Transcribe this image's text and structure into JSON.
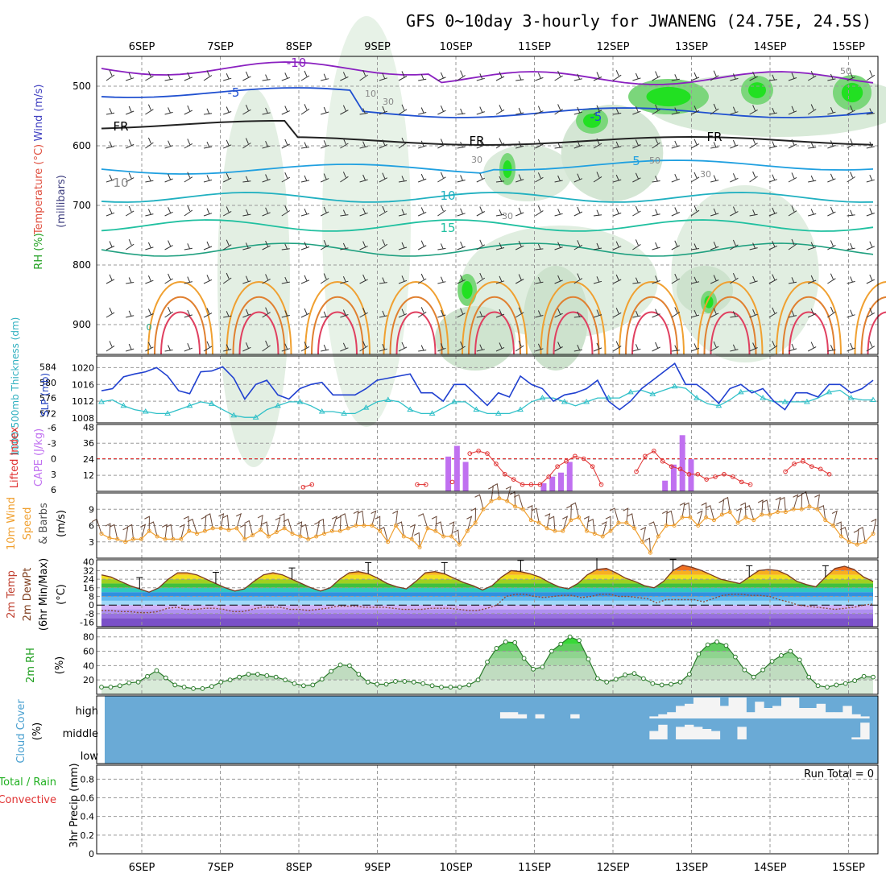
{
  "title": "GFS 0~10day 3-hourly for JWANENG (24.75E, 24.5S)",
  "dates": [
    "6SEP",
    "7SEP",
    "8SEP",
    "9SEP",
    "10SEP",
    "11SEP",
    "12SEP",
    "13SEP",
    "14SEP",
    "15SEP"
  ],
  "labels": {
    "upper_wind": "Wind (m/s)",
    "upper_temp": "Temperature (°C)",
    "upper_rh": "RH (%)",
    "upper_unit": "(millibars)",
    "thick": "1000-500mb Thickness (dm)",
    "slp": "SLP (mb)",
    "li": "Lifted Index",
    "cape": "CAPE (J/kg)",
    "wind10": "10m Wind",
    "speed": "Speed",
    "barbs": "& Barbs",
    "ms": "(m/s)",
    "temp2m": "2m Temp",
    "dew2m": "2m DewPt",
    "minmax": "(6hr Min/Max)",
    "degc": "(°C)",
    "rh2m": "2m RH",
    "pct": "(%)",
    "cloud": "Cloud Cover",
    "precip_total": "Total / Rain",
    "precip_conv": "Convective",
    "precip": "3hr Precip (mm)",
    "run_total": "Run Total = 0",
    "cloud_levels": [
      "high",
      "middle",
      "low"
    ]
  },
  "colors": {
    "slp": "#2040d0",
    "thickness": "#30c0c8",
    "li": "#e03030",
    "cape": "#c070f0",
    "wind10": "#f0a030",
    "rh": "#20c020",
    "cloud": "#6aaad6",
    "purple": "#8a20c0",
    "blue": "#2050d0",
    "teal": "#20c0a0",
    "orange": "#f0a030"
  },
  "chart_data": [
    {
      "type": "contour",
      "panel": "upper-air",
      "ylabel": "(millibars)",
      "y_ticks": [
        500,
        600,
        700,
        800,
        900
      ],
      "contour_labels": [
        "-10",
        "-5",
        "FR",
        "FR",
        "FR",
        "-5",
        "5",
        "10",
        "15",
        "10",
        "30",
        "30",
        "30",
        "50",
        "50",
        "30",
        "10",
        "0"
      ]
    },
    {
      "type": "line",
      "panel": "thickness-slp",
      "y_ticks_left": [
        572,
        576,
        580,
        584
      ],
      "y_ticks_right": [
        1008,
        1012,
        1016,
        1020
      ],
      "series": [
        {
          "name": "SLP",
          "values": [
            1014.5,
            1015,
            1017.8,
            1018.5,
            1019,
            1020,
            1018,
            1014.5,
            1013.8,
            1019,
            1019.2,
            1020.2,
            1017.5,
            1012.5,
            1016,
            1017,
            1013.5,
            1012.5,
            1015,
            1016,
            1016.5,
            1013.5,
            1013.5,
            1013.5,
            1015,
            1017,
            1017.5,
            1018,
            1018.5,
            1014,
            1014,
            1012,
            1016,
            1016,
            1013.5,
            1011,
            1014,
            1013,
            1018,
            1016,
            1015,
            1012,
            1013.5,
            1014,
            1015,
            1017,
            1012,
            1010,
            1012,
            1015,
            1017,
            1019,
            1021,
            1016,
            1016,
            1014,
            1011.5,
            1015,
            1016,
            1014,
            1015,
            1012,
            1010,
            1014,
            1014,
            1013,
            1016,
            1016,
            1014,
            1015,
            1017
          ]
        },
        {
          "name": "Thickness",
          "values": [
            575,
            575.5,
            574,
            573,
            572.5,
            572,
            572,
            573,
            574,
            575,
            574.5,
            573,
            571.5,
            571,
            571,
            573,
            574,
            575,
            575,
            574,
            572.5,
            572.5,
            572,
            572,
            573.5,
            575,
            575.5,
            575,
            573,
            572,
            572,
            573.5,
            575,
            575,
            573,
            572,
            572,
            572,
            573,
            575,
            576,
            576,
            575,
            574,
            575,
            576,
            576,
            576,
            577.5,
            578,
            577,
            578,
            579,
            578.5,
            576,
            574.5,
            574,
            575.5,
            577.5,
            578,
            576,
            575,
            575,
            575,
            575,
            576,
            577.5,
            578,
            576,
            575.5,
            575.5
          ]
        }
      ]
    },
    {
      "type": "bar",
      "panel": "cape-li",
      "y_ticks_cape": [
        12,
        24,
        36,
        48
      ],
      "y_ticks_li": [
        -6,
        -3,
        0,
        3,
        6
      ],
      "cape": [
        0,
        0,
        0,
        0,
        0,
        0,
        0,
        0,
        0,
        0,
        0,
        0,
        0,
        0,
        0,
        0,
        0,
        0,
        0,
        0,
        0,
        0,
        0,
        0,
        0,
        0,
        0,
        0,
        0,
        0,
        0,
        0,
        0,
        0,
        0,
        0,
        0,
        0,
        0,
        0,
        26,
        34,
        22,
        0,
        0,
        0,
        0,
        0,
        0,
        0,
        0,
        6,
        11,
        14,
        22,
        0,
        0,
        0,
        0,
        0,
        0,
        0,
        0,
        0,
        0,
        8,
        20,
        42,
        24,
        0,
        0,
        0,
        0,
        0,
        0,
        0,
        0,
        0,
        0,
        0,
        0,
        0,
        0,
        0,
        0,
        0,
        0,
        0,
        0,
        0
      ],
      "li": [
        null,
        null,
        null,
        null,
        null,
        null,
        null,
        null,
        null,
        null,
        null,
        null,
        null,
        null,
        null,
        null,
        null,
        null,
        null,
        null,
        null,
        null,
        null,
        5.5,
        5,
        null,
        null,
        null,
        null,
        null,
        null,
        null,
        null,
        null,
        null,
        null,
        5,
        5,
        null,
        null,
        4.5,
        null,
        -1,
        -1.5,
        -1,
        1,
        3,
        4,
        5,
        5,
        5,
        3.5,
        1.5,
        0.5,
        -0.5,
        0,
        1.5,
        5,
        null,
        null,
        null,
        2.5,
        -0.5,
        -1.5,
        0.5,
        1.5,
        2,
        3,
        3,
        4,
        3.5,
        3,
        3.5,
        4.5,
        5,
        null,
        null,
        null,
        2.5,
        1,
        0.5,
        1.5,
        2,
        3,
        null,
        null,
        null,
        null,
        null
      ]
    },
    {
      "type": "line",
      "panel": "wind-10m",
      "y_ticks": [
        3,
        6,
        9
      ],
      "speed": [
        4.5,
        3.7,
        3.5,
        3,
        3.5,
        3.5,
        5,
        4,
        3.5,
        3.5,
        3.5,
        5,
        4.5,
        5,
        5.5,
        5.5,
        5.2,
        5.5,
        3.5,
        4.2,
        5.2,
        4,
        4.8,
        5.5,
        4.5,
        4,
        3.5,
        4,
        4.5,
        5,
        5,
        5.5,
        6,
        6,
        6,
        5,
        3,
        6,
        4,
        3.5,
        2,
        5.5,
        5,
        4,
        4,
        2.5,
        5,
        6.5,
        9,
        10.5,
        11,
        10.5,
        9.5,
        9,
        7,
        6.5,
        5.5,
        5,
        5,
        7,
        7.5,
        5,
        4.5,
        4,
        5,
        6.5,
        6.5,
        5.5,
        3,
        1,
        4,
        6,
        6,
        7.5,
        7.5,
        6,
        7.5,
        7,
        8,
        8.5,
        6.5,
        7.5,
        7,
        8,
        8,
        8.5,
        8.5,
        9,
        9,
        9.5,
        9,
        7,
        6,
        4,
        3,
        2.5,
        3,
        4.5
      ]
    },
    {
      "type": "area",
      "panel": "temp-2m",
      "y_ticks": [
        -16,
        -8,
        0,
        8,
        16,
        24,
        32,
        40
      ],
      "temp": [
        28,
        26,
        22,
        18,
        15,
        12,
        16,
        24,
        30,
        30,
        28,
        24,
        20,
        16,
        13,
        15,
        22,
        28,
        30,
        28,
        24,
        20,
        16,
        13,
        16,
        24,
        30,
        31,
        29,
        25,
        20,
        17,
        15,
        22,
        30,
        31,
        29,
        25,
        21,
        18,
        14,
        18,
        26,
        32,
        31,
        29,
        26,
        21,
        17,
        15,
        20,
        28,
        33,
        34,
        30,
        25,
        22,
        18,
        16,
        22,
        32,
        37,
        35,
        32,
        28,
        24,
        22,
        20,
        26,
        32,
        33,
        32,
        28,
        22,
        19,
        17,
        26,
        34,
        36,
        33,
        26,
        22
      ],
      "dewpoint": [
        -5,
        -5,
        -6,
        -6,
        -7,
        -7,
        -6,
        -3,
        -2,
        -4,
        -4,
        -3,
        -3,
        -4,
        -6,
        -6,
        -4,
        -2,
        -2,
        -2,
        -4,
        -4,
        -5,
        -4,
        -3,
        -1,
        -1,
        -1,
        -2,
        -2,
        -2,
        -3,
        -4,
        -4,
        -4,
        -3,
        -3,
        -3,
        -4,
        -5,
        -5,
        -3,
        0,
        8,
        10,
        10,
        8,
        7,
        8,
        9,
        9,
        7,
        8,
        10,
        10,
        8,
        8,
        7,
        6,
        2,
        5,
        5,
        5,
        5,
        3,
        6,
        9,
        10,
        10,
        9,
        9,
        8,
        5,
        3,
        0,
        -1,
        -2,
        -3,
        -4,
        -3,
        -2,
        0,
        1
      ]
    },
    {
      "type": "area",
      "panel": "rh-2m",
      "y_ticks": [
        20,
        40,
        60,
        80
      ],
      "rh": [
        10,
        10,
        12,
        16,
        17,
        25,
        33,
        23,
        13,
        10,
        8,
        8,
        11,
        17,
        20,
        24,
        28,
        28,
        26,
        24,
        20,
        15,
        12,
        13,
        21,
        32,
        41,
        40,
        28,
        17,
        14,
        14,
        18,
        18,
        17,
        15,
        12,
        10,
        10,
        10,
        13,
        20,
        45,
        64,
        73,
        72,
        50,
        35,
        38,
        60,
        70,
        80,
        75,
        49,
        22,
        17,
        21,
        27,
        29,
        22,
        15,
        13,
        14,
        17,
        28,
        56,
        69,
        73,
        68,
        52,
        34,
        24,
        34,
        46,
        54,
        60,
        48,
        24,
        12,
        10,
        13,
        15,
        19,
        25,
        24
      ]
    },
    {
      "type": "bar",
      "panel": "cloud-cover",
      "y_categories": [
        "high",
        "middle",
        "low"
      ],
      "high_pct": [
        0,
        0,
        0,
        0,
        0,
        0,
        0,
        0,
        0,
        0,
        0,
        0,
        0,
        0,
        0,
        0,
        0,
        0,
        0,
        0,
        0,
        0,
        0,
        0,
        0,
        0,
        0,
        0,
        0,
        0,
        0,
        0,
        0,
        0,
        0,
        0,
        0,
        0,
        0,
        0,
        0,
        0,
        0,
        0,
        0,
        30,
        30,
        20,
        0,
        20,
        0,
        0,
        0,
        20,
        0,
        0,
        0,
        0,
        0,
        0,
        0,
        0,
        10,
        20,
        30,
        60,
        70,
        100,
        100,
        100,
        60,
        100,
        100,
        30,
        80,
        50,
        60,
        100,
        100,
        50,
        50,
        70,
        30,
        30,
        60,
        20,
        10,
        0
      ],
      "mid_pct": [
        0,
        0,
        0,
        0,
        0,
        0,
        0,
        0,
        0,
        0,
        0,
        0,
        0,
        0,
        0,
        0,
        0,
        0,
        0,
        0,
        0,
        0,
        0,
        0,
        0,
        0,
        0,
        0,
        0,
        0,
        0,
        0,
        0,
        0,
        0,
        0,
        0,
        0,
        0,
        0,
        0,
        0,
        0,
        0,
        0,
        0,
        0,
        0,
        0,
        0,
        0,
        0,
        0,
        0,
        0,
        0,
        0,
        0,
        0,
        0,
        0,
        0,
        40,
        70,
        0,
        60,
        70,
        60,
        50,
        40,
        0,
        0,
        60,
        0,
        0,
        0,
        0,
        0,
        0,
        0,
        0,
        0,
        0,
        0,
        0,
        10,
        80,
        0
      ]
    },
    {
      "type": "bar",
      "panel": "precip-3hr",
      "y_ticks": [
        0,
        0.2,
        0.4,
        0.6,
        0.8
      ],
      "values": []
    }
  ]
}
